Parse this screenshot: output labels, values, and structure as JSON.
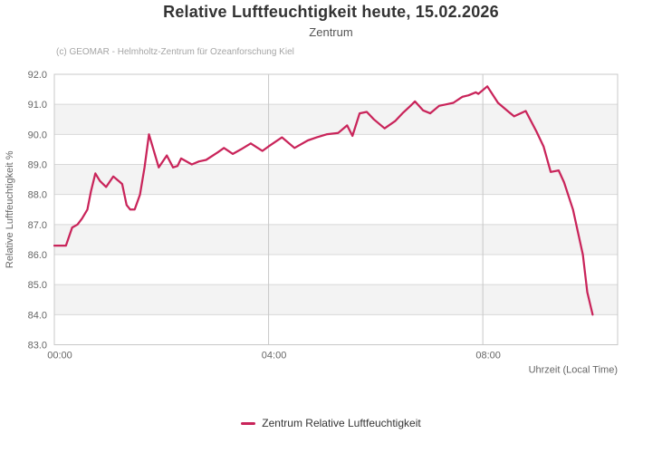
{
  "title": "Relative Luftfeuchtigkeit heute, 15.02.2026",
  "subtitle": "Zentrum",
  "credit": "(c) GEOMAR - Helmholtz-Zentrum für Ozeanforschung Kiel",
  "legend": {
    "label": "Zentrum Relative Luftfeuchtigkeit"
  },
  "colors": {
    "series_line": "#c9245a",
    "band_alternate": "#f3f3f3",
    "grid_horizontal": "#d8d8d8",
    "grid_vertical": "#c8c8c8",
    "plot_border": "#c8c8c8",
    "tick_label": "#666666",
    "axis_title": "#666666"
  },
  "chart_data": {
    "type": "line",
    "title": "Relative Luftfeuchtigkeit heute, 15.02.2026",
    "subtitle": "Zentrum",
    "xlabel": "Uhrzeit (Local Time)",
    "ylabel": "Relative Luftfeuchtigkeit %",
    "ylim": [
      83.0,
      92.0
    ],
    "y_tick_step": 1.0,
    "xlim_minutes": [
      0,
      631
    ],
    "x_ticks": [
      {
        "minutes": 0,
        "label": "00:00"
      },
      {
        "minutes": 240,
        "label": "04:00"
      },
      {
        "minutes": 480,
        "label": "08:00"
      }
    ],
    "grid_on": true,
    "alternate_bands": true,
    "legend_position": "bottom-center",
    "series": [
      {
        "name": "Zentrum Relative Luftfeuchtigkeit",
        "color": "#c9245a",
        "unit": "%",
        "points_minutes_value": [
          [
            0,
            86.3
          ],
          [
            13,
            86.3
          ],
          [
            20,
            86.9
          ],
          [
            26,
            87.0
          ],
          [
            31,
            87.2
          ],
          [
            37,
            87.5
          ],
          [
            41,
            88.1
          ],
          [
            46,
            88.7
          ],
          [
            51,
            88.45
          ],
          [
            58,
            88.25
          ],
          [
            66,
            88.6
          ],
          [
            72,
            88.45
          ],
          [
            76,
            88.35
          ],
          [
            81,
            87.65
          ],
          [
            85,
            87.5
          ],
          [
            90,
            87.5
          ],
          [
            96,
            88.0
          ],
          [
            101,
            88.9
          ],
          [
            106,
            90.0
          ],
          [
            117,
            88.9
          ],
          [
            126,
            89.3
          ],
          [
            133,
            88.9
          ],
          [
            138,
            88.95
          ],
          [
            142,
            89.2
          ],
          [
            154,
            89.0
          ],
          [
            162,
            89.1
          ],
          [
            170,
            89.15
          ],
          [
            183,
            89.4
          ],
          [
            190,
            89.55
          ],
          [
            200,
            89.35
          ],
          [
            209,
            89.5
          ],
          [
            220,
            89.7
          ],
          [
            233,
            89.45
          ],
          [
            240,
            89.6
          ],
          [
            255,
            89.9
          ],
          [
            269,
            89.55
          ],
          [
            284,
            89.8
          ],
          [
            294,
            89.9
          ],
          [
            305,
            90.0
          ],
          [
            318,
            90.05
          ],
          [
            328,
            90.3
          ],
          [
            334,
            89.95
          ],
          [
            342,
            90.7
          ],
          [
            350,
            90.75
          ],
          [
            358,
            90.5
          ],
          [
            370,
            90.2
          ],
          [
            382,
            90.45
          ],
          [
            390,
            90.7
          ],
          [
            399,
            90.95
          ],
          [
            404,
            91.1
          ],
          [
            413,
            90.8
          ],
          [
            421,
            90.7
          ],
          [
            431,
            90.95
          ],
          [
            439,
            91.0
          ],
          [
            447,
            91.05
          ],
          [
            457,
            91.25
          ],
          [
            464,
            91.3
          ],
          [
            472,
            91.4
          ],
          [
            475,
            91.35
          ],
          [
            485,
            91.6
          ],
          [
            497,
            91.05
          ],
          [
            509,
            90.75
          ],
          [
            515,
            90.6
          ],
          [
            528,
            90.78
          ],
          [
            540,
            90.1
          ],
          [
            548,
            89.6
          ],
          [
            556,
            88.75
          ],
          [
            565,
            88.8
          ],
          [
            571,
            88.4
          ],
          [
            581,
            87.5
          ],
          [
            592,
            86.0
          ],
          [
            597,
            84.75
          ],
          [
            603,
            84.0
          ]
        ]
      }
    ]
  }
}
